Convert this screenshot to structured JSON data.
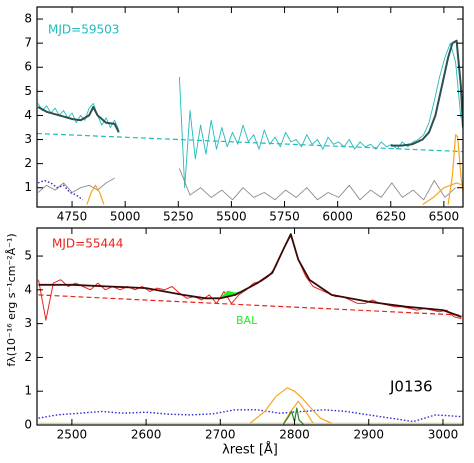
{
  "chart_data": [
    {
      "type": "line",
      "annotation": "MJD=59503",
      "annotation_color": "#1fbcbc",
      "xlim": [
        4585,
        6590
      ],
      "ylim": [
        0.2,
        8.5
      ],
      "xticks": [
        4750,
        5000,
        5250,
        5500,
        5750,
        6000,
        6250,
        6500
      ],
      "yticks": [
        1,
        2,
        3,
        4,
        5,
        6,
        7,
        8
      ],
      "series": [
        {
          "color": "#1fbcbc",
          "style": "solid",
          "width": 0.9,
          "x": [
            4590,
            4610,
            4630,
            4650,
            4670,
            4690,
            4710,
            4730,
            4750,
            4770,
            4790,
            4810,
            4830,
            4850,
            4870,
            4890,
            4910,
            4930,
            4950,
            4970,
            5000,
            5255,
            5280,
            5305,
            5330,
            5355,
            5380,
            5405,
            5430,
            5455,
            5480,
            5505,
            5530,
            5555,
            5580,
            5605,
            5630,
            5655,
            5680,
            5705,
            5730,
            5755,
            5780,
            5805,
            5830,
            5855,
            5880,
            5905,
            5930,
            5955,
            5980,
            6005,
            6030,
            6055,
            6080,
            6105,
            6130,
            6155,
            6180,
            6205,
            6230,
            6255,
            6280,
            6305,
            6330,
            6355,
            6380,
            6405,
            6430,
            6455,
            6480,
            6505,
            6530,
            6555,
            6580
          ],
          "values": [
            4.5,
            4.2,
            4.4,
            4.1,
            4.3,
            4.0,
            4.2,
            3.9,
            4.1,
            3.7,
            4.0,
            3.8,
            4.3,
            4.5,
            4.0,
            3.6,
            3.9,
            3.5,
            3.8,
            3.4,
            null,
            5.6,
            1.0,
            4.2,
            2.2,
            3.6,
            2.4,
            3.8,
            2.6,
            3.5,
            2.7,
            3.3,
            2.8,
            3.6,
            2.9,
            3.2,
            2.6,
            3.4,
            2.8,
            3.1,
            2.7,
            3.3,
            2.9,
            3.0,
            2.7,
            3.2,
            2.8,
            3.0,
            2.6,
            3.1,
            2.8,
            2.9,
            2.7,
            3.0,
            2.6,
            2.9,
            2.7,
            2.8,
            2.6,
            2.9,
            2.7,
            2.8,
            2.6,
            2.9,
            2.7,
            2.9,
            3.0,
            3.2,
            3.7,
            4.6,
            5.6,
            6.4,
            7.0,
            6.2,
            3.9
          ]
        },
        {
          "color": "#1fbcbc",
          "style": "dashed",
          "width": 1.2,
          "x": [
            4585,
            6590
          ],
          "values": [
            3.25,
            2.5
          ]
        },
        {
          "color": "#8c8c8c",
          "style": "solid",
          "width": 0.9,
          "x": [
            4590,
            4630,
            4670,
            4710,
            4750,
            4790,
            4830,
            4870,
            4910,
            4950,
            5000,
            5255,
            5305,
            5355,
            5405,
            5455,
            5505,
            5555,
            5605,
            5655,
            5705,
            5755,
            5805,
            5855,
            5905,
            5955,
            6005,
            6055,
            6105,
            6155,
            6205,
            6255,
            6305,
            6355,
            6405,
            6455,
            6505,
            6555
          ],
          "values": [
            0.8,
            1.1,
            0.9,
            1.2,
            0.8,
            1.0,
            1.1,
            0.9,
            1.2,
            1.4,
            null,
            1.8,
            0.7,
            1.0,
            0.6,
            0.9,
            0.5,
            1.0,
            0.6,
            0.8,
            0.5,
            0.9,
            0.6,
            1.0,
            0.5,
            0.8,
            0.6,
            1.1,
            0.5,
            0.9,
            0.6,
            1.2,
            0.6,
            0.9,
            0.5,
            1.3,
            0.6,
            1.0
          ]
        },
        {
          "color": "#2a2ad0",
          "style": "dotted",
          "width": 1.4,
          "x": [
            4590,
            4620,
            4650,
            4680,
            4710,
            4740,
            4770,
            4800
          ],
          "values": [
            1.2,
            1.3,
            1.2,
            1.0,
            1.1,
            0.8,
            0.7,
            0.5
          ]
        },
        {
          "color": "#f5a623",
          "style": "solid",
          "width": 1.2,
          "x": [
            4820,
            4840,
            4860,
            4880,
            4900,
            4910,
            6400,
            6450,
            6500,
            6560,
            6590,
            6595,
            6520,
            6540,
            6555,
            6565,
            6580,
            6590
          ],
          "values": [
            0.3,
            0.8,
            1.1,
            0.8,
            0.3,
            null,
            0.3,
            0.6,
            1.0,
            1.2,
            1.1,
            null,
            0.3,
            1.5,
            3.2,
            3.1,
            1.5,
            0.8
          ]
        },
        {
          "color": "#2f4f4f",
          "style": "solid",
          "width": 2,
          "x": [
            4590,
            4630,
            4670,
            4710,
            4750,
            4790,
            4830,
            4850,
            4870,
            4910,
            4950,
            4970,
            5000,
            6250,
            6300,
            6350,
            6400,
            6430,
            6460,
            6490,
            6520,
            6540,
            6560,
            6580,
            6590
          ],
          "values": [
            4.35,
            4.15,
            4.05,
            3.95,
            3.85,
            3.8,
            4.0,
            4.35,
            4.0,
            3.7,
            3.65,
            3.3,
            null,
            2.75,
            2.75,
            2.8,
            3.0,
            3.3,
            4.0,
            5.2,
            6.4,
            7.0,
            7.1,
            5.2,
            3.5
          ]
        }
      ]
    },
    {
      "type": "line",
      "annotation": "MJD=55444",
      "annotation_color": "#e8241c",
      "ylabel": "fλ(10⁻¹⁶ erg s⁻¹cm⁻²Å⁻¹)",
      "xlabel": "λrest [Å]",
      "bal_label": "BAL",
      "object_label": "J0136",
      "xlim": [
        2453,
        3027
      ],
      "ylim": [
        0,
        5.83
      ],
      "xticks": [
        2500,
        2600,
        2700,
        2800,
        2900,
        3000
      ],
      "yticks": [
        0,
        1,
        2,
        3,
        4,
        5
      ],
      "series": [
        {
          "color": "#e8241c",
          "style": "solid",
          "width": 1,
          "x": [
            2455,
            2465,
            2475,
            2485,
            2495,
            2505,
            2515,
            2525,
            2535,
            2545,
            2555,
            2565,
            2575,
            2585,
            2595,
            2605,
            2615,
            2625,
            2635,
            2645,
            2655,
            2665,
            2675,
            2685,
            2695,
            2705,
            2715,
            2725,
            2735,
            2745,
            2755,
            2765,
            2775,
            2785,
            2795,
            2805,
            2815,
            2825,
            2835,
            2845,
            2855,
            2865,
            2875,
            2885,
            2895,
            2905,
            2915,
            2925,
            2935,
            2945,
            2955,
            2965,
            2975,
            2985,
            2995,
            3005,
            3015,
            3025
          ],
          "values": [
            4.3,
            3.1,
            4.2,
            4.3,
            4.1,
            4.2,
            4.1,
            4.0,
            4.2,
            4.0,
            4.1,
            4.0,
            4.1,
            4.0,
            4.1,
            3.95,
            4.05,
            4.0,
            4.1,
            3.9,
            3.75,
            3.8,
            3.7,
            3.85,
            3.6,
            3.95,
            3.6,
            3.85,
            4.0,
            4.2,
            4.25,
            4.4,
            4.7,
            5.2,
            5.6,
            4.9,
            4.4,
            4.1,
            4.0,
            3.9,
            3.8,
            3.8,
            3.7,
            3.6,
            3.6,
            3.7,
            3.6,
            3.55,
            3.5,
            3.5,
            3.45,
            3.4,
            3.45,
            3.4,
            3.35,
            3.4,
            3.2,
            3.15
          ]
        },
        {
          "color": "#e8241c",
          "style": "dashed",
          "width": 1.2,
          "x": [
            2455,
            3027
          ],
          "values": [
            3.85,
            3.25
          ]
        },
        {
          "color": "#c8c864",
          "style": "solid",
          "width": 1,
          "x": [
            2455,
            3027
          ],
          "values": [
            0.05,
            0.05
          ]
        },
        {
          "color": "#2a2ad0",
          "style": "dotted",
          "width": 1.4,
          "x": [
            2455,
            2480,
            2510,
            2540,
            2570,
            2600,
            2630,
            2660,
            2690,
            2720,
            2750,
            2780,
            2810,
            2840,
            2870,
            2900,
            2930,
            2960,
            2990,
            3025
          ],
          "values": [
            0.2,
            0.3,
            0.35,
            0.4,
            0.35,
            0.38,
            0.32,
            0.3,
            0.33,
            0.45,
            0.45,
            0.35,
            0.4,
            0.45,
            0.4,
            0.3,
            0.2,
            0.1,
            0.3,
            0.25
          ]
        },
        {
          "color": "#f5a623",
          "style": "solid",
          "width": 1.2,
          "x": [
            2740,
            2760,
            2775,
            2790,
            2800,
            2810,
            2820,
            2835,
            2850,
            2852,
            2785,
            2795,
            2805,
            2815,
            2825
          ],
          "values": [
            0.05,
            0.4,
            0.85,
            1.1,
            1.0,
            0.8,
            0.55,
            0.2,
            0.05,
            null,
            0.05,
            0.4,
            0.7,
            0.4,
            0.05
          ]
        },
        {
          "color": "#1e8c1e",
          "style": "solid",
          "width": 1.2,
          "x": [
            2785,
            2792,
            2796,
            2800,
            2803,
            2806,
            2812
          ],
          "values": [
            0.02,
            0.25,
            0.4,
            0.1,
            0.5,
            0.15,
            0.02
          ]
        },
        {
          "color": "#22ee22",
          "style": "fill",
          "width": 1.5,
          "x": [
            2700,
            2710,
            2720,
            2730
          ],
          "values": [
            3.75,
            3.95,
            3.9,
            3.95
          ]
        },
        {
          "color": "#3a0a0a",
          "style": "solid",
          "width": 1.8,
          "x": [
            2455,
            2500,
            2550,
            2600,
            2650,
            2680,
            2700,
            2720,
            2750,
            2770,
            2785,
            2795,
            2805,
            2820,
            2850,
            2900,
            2950,
            3000,
            3025
          ],
          "values": [
            4.15,
            4.15,
            4.1,
            4.05,
            3.85,
            3.75,
            3.75,
            3.85,
            4.2,
            4.5,
            5.2,
            5.65,
            4.9,
            4.3,
            3.85,
            3.65,
            3.5,
            3.4,
            3.2
          ]
        }
      ]
    }
  ]
}
